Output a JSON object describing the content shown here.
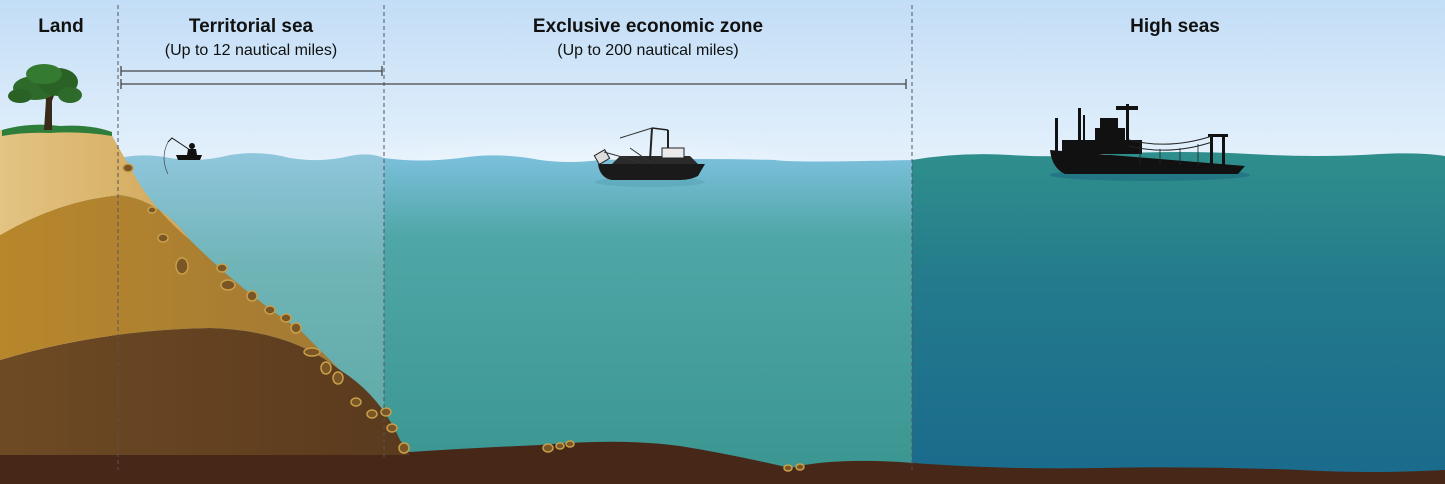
{
  "zones": [
    {
      "id": "land",
      "title": "Land",
      "subtitle": ""
    },
    {
      "id": "territorial-sea",
      "title": "Territorial sea",
      "subtitle": "(Up to 12 nautical miles)"
    },
    {
      "id": "exclusive-economic-zone",
      "title": "Exclusive economic zone",
      "subtitle": "(Up to 200 nautical miles)"
    },
    {
      "id": "high-seas",
      "title": "High seas",
      "subtitle": ""
    }
  ],
  "colors": {
    "sky_top": "#b9d9f5",
    "sky_light": "#eaf4fd",
    "shallow_water": "#6fb8b8",
    "eez_water": "#3f9a98",
    "high_seas_water": "#1f6f8f",
    "cliff_light": "#d9b25a",
    "cliff_mid": "#a87a32",
    "cliff_dark": "#6b4423",
    "seabed": "#4a2a18",
    "grass": "#2f7d3a",
    "tree": "#2e6b2a",
    "silhouette": "#111111"
  },
  "icons": [
    "tree-icon",
    "fisherman-icon",
    "trawler-icon",
    "fishing-vessel-icon"
  ]
}
